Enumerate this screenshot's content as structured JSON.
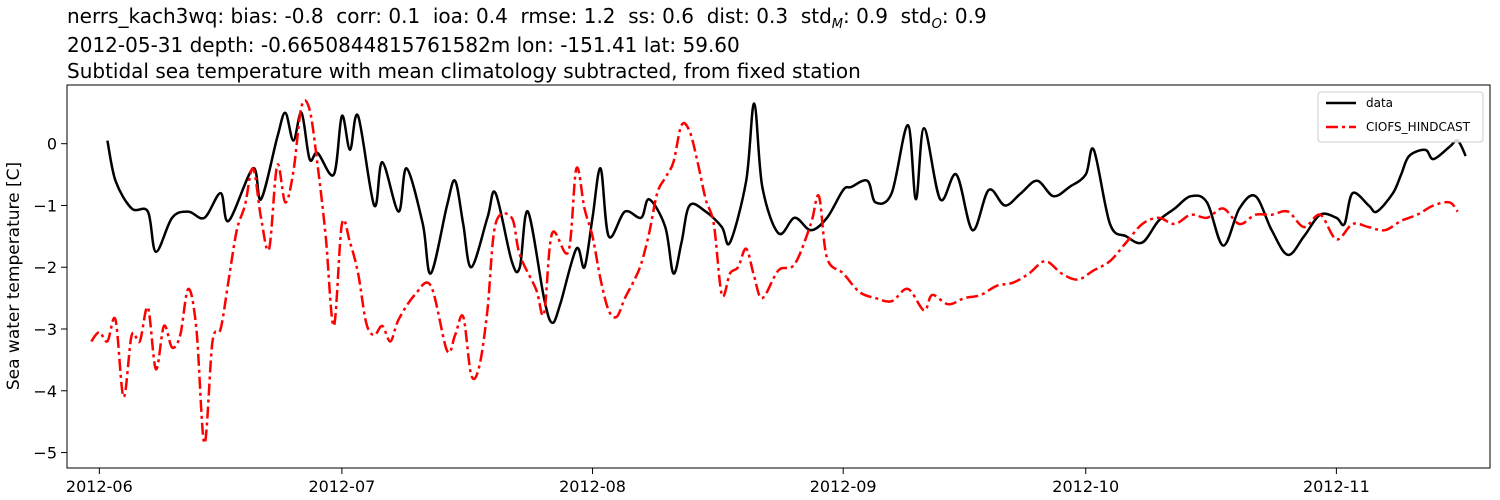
{
  "title_lines": {
    "line1_prefix": "nerrs_kach3wq: bias: -0.8  corr: 0.1  ioa: 0.4  rmse: 1.2  ss: 0.6  dist: 0.3  std",
    "std_m_sub": "M",
    "mid": ": 0.9  std",
    "std_o_sub": "O",
    "line1_suffix": ": 0.9",
    "line2": "2012-05-31 depth: -0.6650844815761582m lon: -151.41 lat: 59.60",
    "line3": "Subtidal sea temperature with mean climatology subtracted, from fixed station"
  },
  "chart_data": {
    "type": "line",
    "title": "Subtidal sea temperature with mean climatology subtracted, from fixed station",
    "xlabel": "",
    "ylabel": "Sea water temperature [C]",
    "xlim": [
      "2012-05-28",
      "2012-11-20"
    ],
    "ylim": [
      -5.25,
      0.95
    ],
    "xticks": [
      "2012-06",
      "2012-07",
      "2012-08",
      "2012-09",
      "2012-10",
      "2012-11"
    ],
    "xtick_dates": [
      "2012-06-01",
      "2012-07-01",
      "2012-08-01",
      "2012-09-01",
      "2012-10-01",
      "2012-11-01"
    ],
    "yticks": [
      0,
      -1,
      -2,
      -3,
      -4,
      -5
    ],
    "ytick_labels": [
      "0",
      "−1",
      "−2",
      "−3",
      "−4",
      "−5"
    ],
    "grid": false,
    "legend_position": "top-right",
    "series": [
      {
        "name": "data",
        "color": "#000000",
        "style": "solid",
        "points": [
          [
            "2012-06-02",
            0.05
          ],
          [
            "2012-06-03",
            -0.6
          ],
          [
            "2012-06-05",
            -1.05
          ],
          [
            "2012-06-07",
            -1.1
          ],
          [
            "2012-06-08",
            -1.75
          ],
          [
            "2012-06-10",
            -1.2
          ],
          [
            "2012-06-12",
            -1.1
          ],
          [
            "2012-06-14",
            -1.2
          ],
          [
            "2012-06-16",
            -0.8
          ],
          [
            "2012-06-17",
            -1.25
          ],
          [
            "2012-06-20",
            -0.4
          ],
          [
            "2012-06-21",
            -0.9
          ],
          [
            "2012-06-23",
            0.1
          ],
          [
            "2012-06-24",
            0.5
          ],
          [
            "2012-06-25",
            0.05
          ],
          [
            "2012-06-26",
            0.5
          ],
          [
            "2012-06-27",
            -0.25
          ],
          [
            "2012-06-28",
            -0.15
          ],
          [
            "2012-06-30",
            -0.5
          ],
          [
            "2012-07-01",
            0.45
          ],
          [
            "2012-07-02",
            -0.1
          ],
          [
            "2012-07-03",
            0.45
          ],
          [
            "2012-07-05",
            -1.0
          ],
          [
            "2012-07-06",
            -0.3
          ],
          [
            "2012-07-08",
            -1.1
          ],
          [
            "2012-07-09",
            -0.4
          ],
          [
            "2012-07-11",
            -1.3
          ],
          [
            "2012-07-12",
            -2.1
          ],
          [
            "2012-07-14",
            -1.0
          ],
          [
            "2012-07-15",
            -0.6
          ],
          [
            "2012-07-16",
            -1.3
          ],
          [
            "2012-07-17",
            -2.0
          ],
          [
            "2012-07-19",
            -1.2
          ],
          [
            "2012-07-20",
            -0.8
          ],
          [
            "2012-07-22",
            -1.9
          ],
          [
            "2012-07-23",
            -2.0
          ],
          [
            "2012-07-24",
            -1.1
          ],
          [
            "2012-07-26",
            -2.5
          ],
          [
            "2012-07-27",
            -2.9
          ],
          [
            "2012-07-28",
            -2.6
          ],
          [
            "2012-07-30",
            -1.7
          ],
          [
            "2012-07-31",
            -2.0
          ],
          [
            "2012-08-01",
            -1.2
          ],
          [
            "2012-08-02",
            -0.4
          ],
          [
            "2012-08-03",
            -1.5
          ],
          [
            "2012-08-05",
            -1.1
          ],
          [
            "2012-08-07",
            -1.2
          ],
          [
            "2012-08-08",
            -0.9
          ],
          [
            "2012-08-10",
            -1.35
          ],
          [
            "2012-08-11",
            -2.1
          ],
          [
            "2012-08-12",
            -1.6
          ],
          [
            "2012-08-13",
            -1.0
          ],
          [
            "2012-08-15",
            -1.1
          ],
          [
            "2012-08-17",
            -1.35
          ],
          [
            "2012-08-18",
            -1.6
          ],
          [
            "2012-08-20",
            -0.6
          ],
          [
            "2012-08-21",
            0.65
          ],
          [
            "2012-08-22",
            -0.7
          ],
          [
            "2012-08-24",
            -1.45
          ],
          [
            "2012-08-26",
            -1.2
          ],
          [
            "2012-08-28",
            -1.4
          ],
          [
            "2012-08-30",
            -1.2
          ],
          [
            "2012-09-01",
            -0.75
          ],
          [
            "2012-09-02",
            -0.7
          ],
          [
            "2012-09-04",
            -0.6
          ],
          [
            "2012-09-05",
            -0.95
          ],
          [
            "2012-09-07",
            -0.8
          ],
          [
            "2012-09-09",
            0.3
          ],
          [
            "2012-09-10",
            -0.9
          ],
          [
            "2012-09-11",
            0.25
          ],
          [
            "2012-09-13",
            -0.9
          ],
          [
            "2012-09-15",
            -0.5
          ],
          [
            "2012-09-17",
            -1.4
          ],
          [
            "2012-09-19",
            -0.75
          ],
          [
            "2012-09-21",
            -1.0
          ],
          [
            "2012-09-23",
            -0.8
          ],
          [
            "2012-09-25",
            -0.6
          ],
          [
            "2012-09-27",
            -0.85
          ],
          [
            "2012-09-29",
            -0.7
          ],
          [
            "2012-10-01",
            -0.5
          ],
          [
            "2012-10-02",
            -0.1
          ],
          [
            "2012-10-04",
            -1.3
          ],
          [
            "2012-10-06",
            -1.5
          ],
          [
            "2012-10-08",
            -1.6
          ],
          [
            "2012-10-10",
            -1.25
          ],
          [
            "2012-10-12",
            -1.05
          ],
          [
            "2012-10-14",
            -0.85
          ],
          [
            "2012-10-16",
            -0.95
          ],
          [
            "2012-10-18",
            -1.65
          ],
          [
            "2012-10-20",
            -1.05
          ],
          [
            "2012-10-22",
            -0.85
          ],
          [
            "2012-10-24",
            -1.4
          ],
          [
            "2012-10-26",
            -1.8
          ],
          [
            "2012-10-28",
            -1.5
          ],
          [
            "2012-10-30",
            -1.15
          ],
          [
            "2012-11-01",
            -1.2
          ],
          [
            "2012-11-02",
            -1.3
          ],
          [
            "2012-11-03",
            -0.8
          ],
          [
            "2012-11-05",
            -1.0
          ],
          [
            "2012-11-06",
            -1.1
          ],
          [
            "2012-11-08",
            -0.8
          ],
          [
            "2012-11-09",
            -0.5
          ],
          [
            "2012-11-10",
            -0.2
          ],
          [
            "2012-11-12",
            -0.1
          ],
          [
            "2012-11-13",
            -0.25
          ],
          [
            "2012-11-15",
            -0.05
          ],
          [
            "2012-11-16",
            0.05
          ],
          [
            "2012-11-17",
            -0.2
          ]
        ]
      },
      {
        "name": "CIOFS_HINDCAST",
        "color": "#ff0000",
        "style": "dashdot",
        "points": [
          [
            "2012-05-31",
            -3.2
          ],
          [
            "2012-06-01",
            -3.05
          ],
          [
            "2012-06-02",
            -3.2
          ],
          [
            "2012-06-03",
            -2.85
          ],
          [
            "2012-06-04",
            -4.1
          ],
          [
            "2012-06-05",
            -3.1
          ],
          [
            "2012-06-06",
            -3.2
          ],
          [
            "2012-06-07",
            -2.65
          ],
          [
            "2012-06-08",
            -3.65
          ],
          [
            "2012-06-09",
            -2.95
          ],
          [
            "2012-06-10",
            -3.3
          ],
          [
            "2012-06-11",
            -3.1
          ],
          [
            "2012-06-12",
            -2.35
          ],
          [
            "2012-06-13",
            -3.0
          ],
          [
            "2012-06-14",
            -4.85
          ],
          [
            "2012-06-15",
            -3.2
          ],
          [
            "2012-06-16",
            -3.0
          ],
          [
            "2012-06-17",
            -2.2
          ],
          [
            "2012-06-18",
            -1.4
          ],
          [
            "2012-06-19",
            -1.0
          ],
          [
            "2012-06-20",
            -0.4
          ],
          [
            "2012-06-21",
            -1.2
          ],
          [
            "2012-06-22",
            -1.7
          ],
          [
            "2012-06-23",
            -0.35
          ],
          [
            "2012-06-24",
            -0.95
          ],
          [
            "2012-06-25",
            -0.45
          ],
          [
            "2012-06-26",
            0.6
          ],
          [
            "2012-06-27",
            0.55
          ],
          [
            "2012-06-28",
            -0.35
          ],
          [
            "2012-06-29",
            -1.5
          ],
          [
            "2012-06-30",
            -2.95
          ],
          [
            "2012-07-01",
            -1.3
          ],
          [
            "2012-07-02",
            -1.6
          ],
          [
            "2012-07-03",
            -2.1
          ],
          [
            "2012-07-04",
            -2.9
          ],
          [
            "2012-07-05",
            -3.1
          ],
          [
            "2012-07-06",
            -2.95
          ],
          [
            "2012-07-07",
            -3.2
          ],
          [
            "2012-07-08",
            -2.85
          ],
          [
            "2012-07-10",
            -2.45
          ],
          [
            "2012-07-12",
            -2.3
          ],
          [
            "2012-07-14",
            -3.35
          ],
          [
            "2012-07-15",
            -3.1
          ],
          [
            "2012-07-16",
            -2.8
          ],
          [
            "2012-07-17",
            -3.75
          ],
          [
            "2012-07-18",
            -3.6
          ],
          [
            "2012-07-19",
            -2.7
          ],
          [
            "2012-07-20",
            -1.3
          ],
          [
            "2012-07-22",
            -1.2
          ],
          [
            "2012-07-23",
            -1.8
          ],
          [
            "2012-07-25",
            -2.35
          ],
          [
            "2012-07-26",
            -2.75
          ],
          [
            "2012-07-27",
            -1.45
          ],
          [
            "2012-07-29",
            -1.75
          ],
          [
            "2012-07-30",
            -0.4
          ],
          [
            "2012-07-31",
            -1.05
          ],
          [
            "2012-08-01",
            -1.5
          ],
          [
            "2012-08-02",
            -2.2
          ],
          [
            "2012-08-03",
            -2.7
          ],
          [
            "2012-08-04",
            -2.8
          ],
          [
            "2012-08-05",
            -2.5
          ],
          [
            "2012-08-06",
            -2.25
          ],
          [
            "2012-08-07",
            -1.95
          ],
          [
            "2012-08-08",
            -1.45
          ],
          [
            "2012-08-09",
            -0.8
          ],
          [
            "2012-08-10",
            -0.55
          ],
          [
            "2012-08-11",
            -0.3
          ],
          [
            "2012-08-12",
            0.3
          ],
          [
            "2012-08-13",
            0.2
          ],
          [
            "2012-08-14",
            -0.3
          ],
          [
            "2012-08-15",
            -0.9
          ],
          [
            "2012-08-16",
            -1.3
          ],
          [
            "2012-08-17",
            -2.45
          ],
          [
            "2012-08-18",
            -2.1
          ],
          [
            "2012-08-19",
            -2.0
          ],
          [
            "2012-08-20",
            -1.7
          ],
          [
            "2012-08-21",
            -2.15
          ],
          [
            "2012-08-22",
            -2.5
          ],
          [
            "2012-08-24",
            -2.05
          ],
          [
            "2012-08-26",
            -1.95
          ],
          [
            "2012-08-28",
            -1.3
          ],
          [
            "2012-08-29",
            -0.85
          ],
          [
            "2012-08-30",
            -1.85
          ],
          [
            "2012-09-01",
            -2.1
          ],
          [
            "2012-09-03",
            -2.4
          ],
          [
            "2012-09-05",
            -2.5
          ],
          [
            "2012-09-07",
            -2.55
          ],
          [
            "2012-09-09",
            -2.35
          ],
          [
            "2012-09-11",
            -2.7
          ],
          [
            "2012-09-12",
            -2.45
          ],
          [
            "2012-09-14",
            -2.6
          ],
          [
            "2012-09-16",
            -2.5
          ],
          [
            "2012-09-18",
            -2.45
          ],
          [
            "2012-09-20",
            -2.3
          ],
          [
            "2012-09-22",
            -2.25
          ],
          [
            "2012-09-24",
            -2.1
          ],
          [
            "2012-09-26",
            -1.9
          ],
          [
            "2012-09-28",
            -2.1
          ],
          [
            "2012-09-30",
            -2.2
          ],
          [
            "2012-10-02",
            -2.05
          ],
          [
            "2012-10-04",
            -1.9
          ],
          [
            "2012-10-06",
            -1.6
          ],
          [
            "2012-10-08",
            -1.3
          ],
          [
            "2012-10-10",
            -1.2
          ],
          [
            "2012-10-12",
            -1.3
          ],
          [
            "2012-10-14",
            -1.15
          ],
          [
            "2012-10-16",
            -1.2
          ],
          [
            "2012-10-18",
            -1.05
          ],
          [
            "2012-10-20",
            -1.3
          ],
          [
            "2012-10-22",
            -1.15
          ],
          [
            "2012-10-24",
            -1.15
          ],
          [
            "2012-10-26",
            -1.1
          ],
          [
            "2012-10-28",
            -1.35
          ],
          [
            "2012-10-30",
            -1.15
          ],
          [
            "2012-11-01",
            -1.55
          ],
          [
            "2012-11-03",
            -1.3
          ],
          [
            "2012-11-05",
            -1.35
          ],
          [
            "2012-11-07",
            -1.4
          ],
          [
            "2012-11-09",
            -1.25
          ],
          [
            "2012-11-11",
            -1.15
          ],
          [
            "2012-11-13",
            -1.0
          ],
          [
            "2012-11-15",
            -0.95
          ],
          [
            "2012-11-16",
            -1.1
          ]
        ]
      }
    ]
  }
}
